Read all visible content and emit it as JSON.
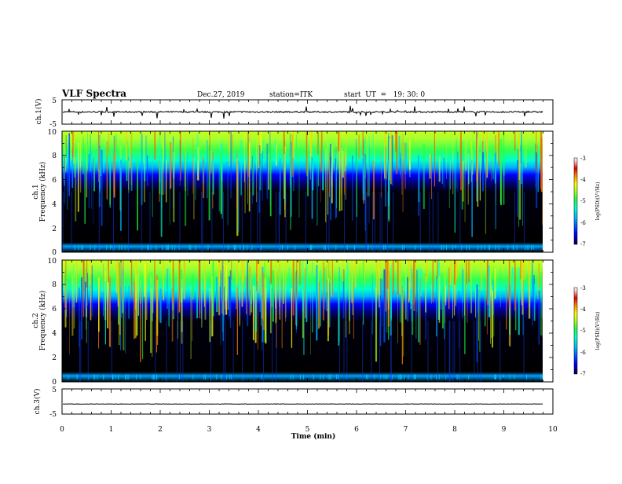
{
  "header": {
    "title": "VLF Spectra",
    "date": "Dec.27, 2019",
    "station": "station=ITK",
    "start": "start  UT  =   19: 30: 0"
  },
  "chart_data": [
    {
      "type": "line",
      "panel": "ch1-waveform",
      "ylabel": "ch.1(V)",
      "ylim": [
        -5,
        5
      ],
      "yticks": [
        "5",
        "-5"
      ],
      "baseline_v": 0.0,
      "xlim": [
        0,
        10
      ]
    },
    {
      "type": "heatmap",
      "panel": "ch1-spectrogram",
      "ylabel_top": "ch.1",
      "ylabel": "Frequency (kHz)",
      "ylim": [
        0,
        10
      ],
      "yticks": [
        "0",
        "2",
        "4",
        "6",
        "8",
        "10"
      ],
      "xlim": [
        0,
        10
      ],
      "colorbar": {
        "label": "log(PSD)(V²/Hz)",
        "range": [
          -7,
          -3
        ],
        "ticks": [
          "-3",
          "-4",
          "-5",
          "-6",
          "-7"
        ]
      }
    },
    {
      "type": "heatmap",
      "panel": "ch2-spectrogram",
      "ylabel_top": "ch.2",
      "ylabel": "Frequency (kHz)",
      "ylim": [
        0,
        10
      ],
      "yticks": [
        "0",
        "2",
        "4",
        "6",
        "8",
        "10"
      ],
      "xlim": [
        0,
        10
      ],
      "colorbar": {
        "label": "log(PSD)(V²/Hz)",
        "range": [
          -7,
          -3
        ],
        "ticks": [
          "-3",
          "-4",
          "-5",
          "-6",
          "-7"
        ]
      }
    },
    {
      "type": "line",
      "panel": "ch3-waveform",
      "ylabel": "ch.3(V)",
      "ylim": [
        -5,
        5
      ],
      "yticks": [
        "5",
        "-5"
      ],
      "baseline_v": -1.0,
      "xlim": [
        0,
        10
      ]
    }
  ],
  "xaxis": {
    "label": "Time (min)",
    "ticks": [
      "0",
      "1",
      "2",
      "3",
      "4",
      "5",
      "6",
      "7",
      "8",
      "9",
      "10"
    ]
  },
  "colors": {
    "background": "#000000",
    "colormap": [
      "#00007a",
      "#0000ff",
      "#00a8ff",
      "#00ffd0",
      "#20ff40",
      "#b0ff20",
      "#ffff00",
      "#ff8000",
      "#e00000",
      "#ffffff"
    ]
  }
}
